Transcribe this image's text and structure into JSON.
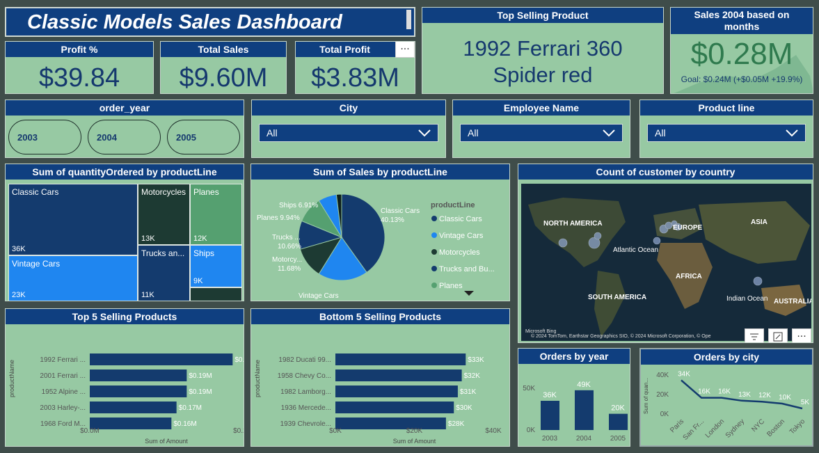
{
  "title": "Classic Models Sales Dashboard",
  "kpis": {
    "profit_pct": {
      "label": "Profit %",
      "value": "$39.84"
    },
    "total_sales": {
      "label": "Total Sales",
      "value": "$9.60M"
    },
    "total_profit": {
      "label": "Total Profit",
      "value": "$3.83M"
    },
    "top_product": {
      "label": "Top Selling Product",
      "value_line1": "1992 Ferrari 360",
      "value_line2": "Spider red"
    },
    "sales_2004": {
      "label": "Sales 2004 based on months",
      "value": "$0.28M",
      "goal": "Goal: $0.24M (+$0.05M +19.9%)"
    }
  },
  "more_glyph": "···",
  "slicers": {
    "order_year": {
      "label": "order_year",
      "options": [
        "2003",
        "2004",
        "2005"
      ]
    },
    "city": {
      "label": "City",
      "value": "All"
    },
    "employee": {
      "label": "Employee Name",
      "value": "All"
    },
    "product_line": {
      "label": "Product line",
      "value": "All"
    }
  },
  "treemap": {
    "title": "Sum of quantityOrdered by productLine",
    "cells": [
      {
        "label": "Classic Cars",
        "value": "36K",
        "color": "#143b6e"
      },
      {
        "label": "Vintage Cars",
        "value": "23K",
        "color": "#1f86f0"
      },
      {
        "label": "Motorcycles",
        "value": "13K",
        "color": "#1d3a33"
      },
      {
        "label": "Trucks an...",
        "value": "11K",
        "color": "#143b6e"
      },
      {
        "label": "Planes",
        "value": "12K",
        "color": "#55a070"
      },
      {
        "label": "Ships",
        "value": "9K",
        "color": "#1f86f0"
      },
      {
        "label": "",
        "value": "",
        "color": "#1d3a33"
      }
    ]
  },
  "pie": {
    "title": "Sum of Sales by productLine",
    "legend_title": "productLine",
    "slices": [
      {
        "name": "Classic Cars",
        "pct": 40.13,
        "label": "Classic Cars",
        "pct_label": "40.13%",
        "color": "#143b6e"
      },
      {
        "name": "Vintage Cars",
        "pct": 18.72,
        "label": "Vintage Cars",
        "pct_label": "18.72%",
        "color": "#1f86f0"
      },
      {
        "name": "Motorcycles",
        "pct": 11.68,
        "label": "Motorcy...",
        "pct_label": "11.68%",
        "color": "#1d3a33"
      },
      {
        "name": "Trucks and Bu...",
        "pct": 10.66,
        "label": "Trucks ...",
        "pct_label": "10.66%",
        "color": "#143b6e"
      },
      {
        "name": "Planes",
        "pct": 9.94,
        "label": "Planes",
        "pct_label": "9.94%",
        "color": "#55a070"
      },
      {
        "name": "Ships",
        "pct": 6.91,
        "label": "Ships",
        "pct_label": "6.91%",
        "color": "#1f86f0"
      },
      {
        "name": "Trains",
        "pct": 1.96,
        "label": "",
        "pct_label": "",
        "color": "#0d1f1b"
      }
    ],
    "legend": [
      "Classic Cars",
      "Vintage Cars",
      "Motorcycles",
      "Trucks and Bu...",
      "Planes"
    ]
  },
  "map": {
    "title": "Count of customer by country",
    "labels": [
      "NORTH AMERICA",
      "EUROPE",
      "ASIA",
      "Atlantic Ocean",
      "AFRICA",
      "SOUTH AMERICA",
      "Indian Ocean",
      "AUSTRALIA"
    ],
    "attribution": "© 2024 TomTom, Earthstar Geographics SIO, © 2024 Microsoft Corporation, © Ope",
    "brand": "Microsoft Bing"
  },
  "chart_data": [
    {
      "type": "bar",
      "title": "Top 5 Selling Products",
      "categories": [
        "1992 Ferrari ...",
        "2001 Ferrari ...",
        "1952 Alpine ...",
        "2003 Harley-...",
        "1968 Ford M..."
      ],
      "values": [
        0.28,
        0.19,
        0.19,
        0.17,
        0.16
      ],
      "value_labels": [
        "$0.28M",
        "$0.19M",
        "$0.19M",
        "$0.17M",
        "$0.16M"
      ],
      "xlabel": "Sum of Amount",
      "ylabel": "productName",
      "xlim": [
        0,
        0.3
      ],
      "ticks": [
        "$0.0M",
        "$0.2M"
      ]
    },
    {
      "type": "bar",
      "title": "Bottom 5 Selling Products",
      "categories": [
        "1982 Ducati 99...",
        "1958 Chevy Co...",
        "1982 Lamborg...",
        "1936 Mercede...",
        "1939 Chevrole..."
      ],
      "values": [
        33,
        32,
        31,
        30,
        28
      ],
      "value_labels": [
        "$33K",
        "$32K",
        "$31K",
        "$30K",
        "$28K"
      ],
      "xlabel": "Sum of Amount",
      "ylabel": "productName",
      "xlim": [
        0,
        40
      ],
      "ticks": [
        "$0K",
        "$20K",
        "$40K"
      ]
    },
    {
      "type": "bar",
      "title": "Orders by year",
      "categories": [
        "2003",
        "2004",
        "2005"
      ],
      "values": [
        36,
        49,
        20
      ],
      "value_labels": [
        "36K",
        "49K",
        "20K"
      ],
      "ylim": [
        0,
        60
      ],
      "ticks": [
        "0K",
        "50K"
      ]
    },
    {
      "type": "line",
      "title": "Orders by city",
      "categories": [
        "Paris",
        "San Fr...",
        "London",
        "Sydney",
        "NYC",
        "Boston",
        "Tokyo"
      ],
      "values": [
        34,
        16,
        16,
        13,
        12,
        10,
        5
      ],
      "value_labels": [
        "34K",
        "16K",
        "16K",
        "13K",
        "12K",
        "10K",
        "5K"
      ],
      "ylabel": "Sum of quan...",
      "ylim": [
        0,
        40
      ],
      "ticks": [
        "0K",
        "20K",
        "40K"
      ]
    }
  ]
}
